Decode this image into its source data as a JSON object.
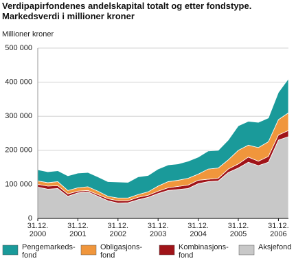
{
  "chart_data": {
    "type": "stacked-area",
    "title": "Verdipapirfondenes andelskapital totalt og etter fondstype. Markedsverdi i millioner kroner",
    "y_axis_label": "Millioner kroner",
    "categories": [
      "31.12.\n2000",
      null,
      null,
      null,
      "31.12.\n2001",
      null,
      null,
      null,
      "31.12.\n2002",
      null,
      null,
      null,
      "31.12.\n2003",
      null,
      null,
      null,
      "31.12.\n2004",
      null,
      null,
      null,
      "31.12.\n2005",
      null,
      null,
      null,
      "31.12.\n2006",
      null
    ],
    "series": [
      {
        "name": "Pengemarkeds-\nfond",
        "color": "#1a9a9a",
        "values": [
          33000,
          32000,
          32000,
          43000,
          43000,
          42000,
          42000,
          43000,
          47000,
          46000,
          52000,
          48000,
          50000,
          49000,
          48000,
          50000,
          50000,
          53000,
          52000,
          58000,
          72000,
          70000,
          74000,
          70000,
          80000,
          100000
        ]
      },
      {
        "name": "Obligasjons-\nfond",
        "color": "#f0963c",
        "values": [
          10000,
          10000,
          12000,
          10000,
          10000,
          11000,
          10000,
          7000,
          8000,
          8000,
          8000,
          10000,
          15000,
          18000,
          18000,
          20000,
          18000,
          30000,
          30000,
          27000,
          40000,
          35000,
          40000,
          43000,
          45000,
          52000
        ]
      },
      {
        "name": "Kombinasjons-\nfond",
        "color": "#a01419",
        "values": [
          8000,
          9000,
          8000,
          7000,
          5000,
          4000,
          5000,
          6000,
          7000,
          6000,
          7000,
          6000,
          7000,
          8000,
          9000,
          10000,
          10000,
          7000,
          8000,
          10000,
          12000,
          15000,
          13000,
          17000,
          15000,
          18000
        ]
      },
      {
        "name": "Aksjefond",
        "color": "#c8c8c8",
        "values": [
          92000,
          86000,
          88000,
          65000,
          75000,
          78000,
          65000,
          52000,
          45000,
          46000,
          55000,
          62000,
          73000,
          82000,
          85000,
          88000,
          102000,
          108000,
          110000,
          135000,
          148000,
          165000,
          155000,
          165000,
          230000,
          240000
        ]
      }
    ],
    "ylim": [
      0,
      500000
    ],
    "yticks": [
      0,
      {
        "value": 100000,
        "label": "100 000"
      },
      {
        "value": 200000,
        "label": "200 000"
      },
      {
        "value": 300000,
        "label": "300 000"
      },
      {
        "value": 400000,
        "label": "400 000"
      },
      {
        "value": 500000,
        "label": "500 000"
      }
    ],
    "grid": true
  }
}
